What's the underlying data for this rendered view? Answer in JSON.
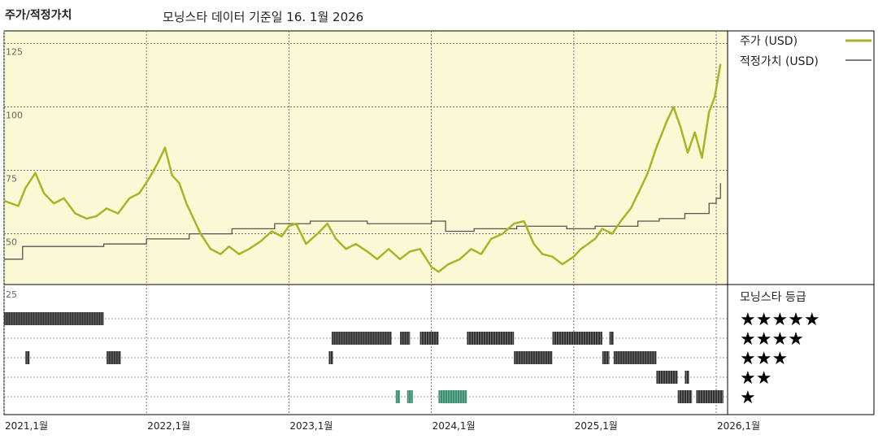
{
  "header": {
    "title": "주가/적정가치",
    "subtitle": "모닝스타 데이터 기준일 16. 1월 2026"
  },
  "legend": {
    "price_label": "주가 (USD)",
    "fair_label": "적정가치 (USD)",
    "rating_title": "모닝스타 등급"
  },
  "colors": {
    "price": "#a8b428",
    "fair": "#555555",
    "bg_main": "#fbf8d6",
    "bar_black": "#333333",
    "bar_green": "#3d8f72"
  },
  "chart_data": [
    {
      "type": "line",
      "title": "주가/적정가치",
      "ylim": [
        30,
        130
      ],
      "yticks": [
        50,
        75,
        100,
        125
      ],
      "xlim": [
        2021.0,
        2026.08
      ],
      "xticks": [
        {
          "x": 2021.0,
          "label": "2021,1월"
        },
        {
          "x": 2022.0,
          "label": "2022,1월"
        },
        {
          "x": 2023.0,
          "label": "2023,1월"
        },
        {
          "x": 2024.0,
          "label": "2024,1월"
        },
        {
          "x": 2025.0,
          "label": "2025,1월"
        },
        {
          "x": 2026.0,
          "label": "2026,1월"
        }
      ],
      "series": [
        {
          "name": "주가 (USD)",
          "x": [
            2021.0,
            2021.05,
            2021.1,
            2021.15,
            2021.22,
            2021.28,
            2021.35,
            2021.42,
            2021.5,
            2021.58,
            2021.65,
            2021.72,
            2021.8,
            2021.88,
            2021.95,
            2022.02,
            2022.08,
            2022.13,
            2022.18,
            2022.23,
            2022.28,
            2022.33,
            2022.38,
            2022.45,
            2022.52,
            2022.58,
            2022.65,
            2022.72,
            2022.8,
            2022.88,
            2022.95,
            2023.0,
            2023.05,
            2023.12,
            2023.2,
            2023.27,
            2023.33,
            2023.4,
            2023.47,
            2023.55,
            2023.62,
            2023.7,
            2023.78,
            2023.85,
            2023.92,
            2024.0,
            2024.05,
            2024.12,
            2024.2,
            2024.28,
            2024.35,
            2024.42,
            2024.5,
            2024.58,
            2024.65,
            2024.72,
            2024.78,
            2024.85,
            2024.92,
            2025.0,
            2025.05,
            2025.1,
            2025.15,
            2025.2,
            2025.27,
            2025.33,
            2025.4,
            2025.47,
            2025.52,
            2025.58,
            2025.65,
            2025.7,
            2025.75,
            2025.8,
            2025.85,
            2025.9,
            2025.95,
            2025.99,
            2026.03
          ],
          "y": [
            63,
            62,
            61,
            68,
            74,
            66,
            62,
            64,
            58,
            56,
            57,
            60,
            58,
            64,
            66,
            72,
            78,
            84,
            73,
            70,
            62,
            56,
            50,
            44,
            42,
            45,
            42,
            44,
            47,
            51,
            49,
            53,
            54,
            46,
            50,
            54,
            48,
            44,
            46,
            43,
            40,
            44,
            40,
            43,
            44,
            37,
            35,
            38,
            40,
            44,
            42,
            48,
            50,
            54,
            55,
            46,
            42,
            41,
            38,
            41,
            44,
            46,
            48,
            52,
            50,
            55,
            60,
            68,
            74,
            84,
            94,
            100,
            92,
            82,
            90,
            80,
            98,
            104,
            117
          ]
        },
        {
          "name": "적정가치 (USD)",
          "x": [
            2021.0,
            2021.12,
            2021.13,
            2021.3,
            2021.7,
            2022.0,
            2022.3,
            2022.6,
            2022.9,
            2023.15,
            2023.3,
            2023.55,
            2023.75,
            2024.0,
            2024.1,
            2024.3,
            2024.45,
            2024.6,
            2024.8,
            2024.95,
            2025.15,
            2025.3,
            2025.45,
            2025.6,
            2025.78,
            2025.95,
            2026.0,
            2026.03
          ],
          "y": [
            40,
            40,
            45,
            45,
            46,
            48,
            50,
            52,
            54,
            55,
            55,
            54,
            54,
            55,
            51,
            52,
            52,
            53,
            53,
            52,
            53,
            53,
            55,
            56,
            58,
            62,
            64,
            70
          ]
        }
      ]
    },
    {
      "type": "bar",
      "title": "모닝스타 등급",
      "levels": [
        "★★★★★",
        "★★★★",
        "★★★",
        "★★",
        "★"
      ],
      "segments": [
        {
          "level": 5,
          "start": 2021.0,
          "end": 2021.7
        },
        {
          "level": 3,
          "start": 2021.15,
          "end": 2021.18
        },
        {
          "level": 3,
          "start": 2021.72,
          "end": 2021.82
        },
        {
          "level": 4,
          "start": 2023.3,
          "end": 2023.72
        },
        {
          "level": 3,
          "start": 2023.28,
          "end": 2023.31
        },
        {
          "level": 1,
          "start": 2023.75,
          "end": 2023.78,
          "green": true
        },
        {
          "level": 1,
          "start": 2023.83,
          "end": 2023.87,
          "green": true
        },
        {
          "level": 4,
          "start": 2023.78,
          "end": 2023.85
        },
        {
          "level": 4,
          "start": 2023.92,
          "end": 2024.05
        },
        {
          "level": 1,
          "start": 2024.05,
          "end": 2024.25,
          "green": true
        },
        {
          "level": 4,
          "start": 2024.25,
          "end": 2024.58
        },
        {
          "level": 3,
          "start": 2024.58,
          "end": 2024.85
        },
        {
          "level": 4,
          "start": 2024.85,
          "end": 2025.2
        },
        {
          "level": 3,
          "start": 2025.2,
          "end": 2025.25
        },
        {
          "level": 4,
          "start": 2025.25,
          "end": 2025.28
        },
        {
          "level": 3,
          "start": 2025.28,
          "end": 2025.58
        },
        {
          "level": 2,
          "start": 2025.58,
          "end": 2025.73
        },
        {
          "level": 2,
          "start": 2025.78,
          "end": 2025.81
        },
        {
          "level": 1,
          "start": 2025.73,
          "end": 2025.83
        },
        {
          "level": 1,
          "start": 2025.86,
          "end": 2026.05
        }
      ],
      "ytick": "25"
    }
  ]
}
